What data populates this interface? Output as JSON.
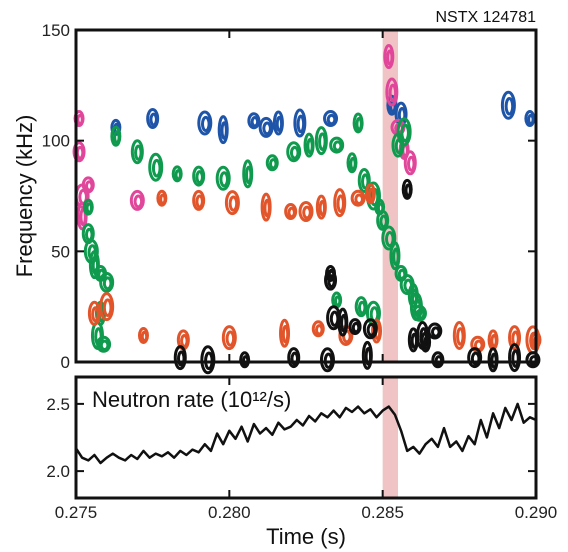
{
  "shot_label": "NSTX 124781",
  "colors": {
    "band": "#f0c4c4",
    "blue": "#1f55a8",
    "pink": "#e0479a",
    "green": "#0f9a4e",
    "orange": "#e2552b",
    "black": "#111111"
  },
  "chart_data": [
    {
      "type": "contour",
      "title": "",
      "xlabel": "",
      "ylabel": "Frequency (kHz)",
      "xlim": [
        0.275,
        0.29
      ],
      "ylim": [
        0,
        150
      ],
      "x_ticks": [
        0.275,
        0.28,
        0.285,
        0.29
      ],
      "y_ticks": [
        0,
        50,
        100,
        150
      ],
      "y_tick_labels": [
        "0",
        "50",
        "100",
        "150"
      ],
      "highlight_band": [
        0.285,
        0.2855
      ],
      "mode_groups": [
        {
          "color": "blue",
          "points": [
            [
              0.2763,
              106
            ],
            [
              0.2775,
              110
            ],
            [
              0.2792,
              108
            ],
            [
              0.2798,
              105
            ],
            [
              0.2808,
              109
            ],
            [
              0.2812,
              106
            ],
            [
              0.2816,
              108
            ],
            [
              0.2823,
              108
            ],
            [
              0.2833,
              110
            ],
            [
              0.2853,
              116
            ],
            [
              0.2856,
              112
            ],
            [
              0.2891,
              116
            ],
            [
              0.2898,
              110
            ]
          ]
        },
        {
          "color": "pink",
          "points": [
            [
              0.2751,
              110
            ],
            [
              0.2751,
              95
            ],
            [
              0.2752,
              75
            ],
            [
              0.2752,
              66
            ],
            [
              0.2754,
              80
            ],
            [
              0.277,
              73
            ],
            [
              0.2852,
              138
            ],
            [
              0.2853,
              122
            ],
            [
              0.2855,
              106
            ],
            [
              0.2857,
              96
            ],
            [
              0.2859,
              90
            ]
          ]
        },
        {
          "color": "green",
          "points": [
            [
              0.2754,
              70
            ],
            [
              0.2754,
              58
            ],
            [
              0.2755,
              50
            ],
            [
              0.2756,
              44
            ],
            [
              0.2758,
              40
            ],
            [
              0.276,
              36
            ],
            [
              0.2758,
              22
            ],
            [
              0.2757,
              12
            ],
            [
              0.2759,
              8
            ],
            [
              0.2763,
              102
            ],
            [
              0.277,
              95
            ],
            [
              0.2776,
              88
            ],
            [
              0.2783,
              85
            ],
            [
              0.279,
              84
            ],
            [
              0.2798,
              83
            ],
            [
              0.2806,
              85
            ],
            [
              0.2814,
              90
            ],
            [
              0.2821,
              95
            ],
            [
              0.2826,
              98
            ],
            [
              0.283,
              100
            ],
            [
              0.2835,
              98
            ],
            [
              0.284,
              90
            ],
            [
              0.2844,
              82
            ],
            [
              0.2847,
              75
            ],
            [
              0.2849,
              70
            ],
            [
              0.285,
              64
            ],
            [
              0.2852,
              56
            ],
            [
              0.2854,
              48
            ],
            [
              0.2856,
              40
            ],
            [
              0.2858,
              35
            ],
            [
              0.286,
              30
            ],
            [
              0.2861,
              25
            ],
            [
              0.2862,
              22
            ],
            [
              0.2842,
              108
            ],
            [
              0.2855,
              98
            ],
            [
              0.2857,
              104
            ],
            [
              0.2835,
              28
            ],
            [
              0.2843,
              25
            ],
            [
              0.2847,
              22
            ]
          ]
        },
        {
          "color": "orange",
          "points": [
            [
              0.2778,
              74
            ],
            [
              0.279,
              73
            ],
            [
              0.2801,
              72
            ],
            [
              0.2812,
              70
            ],
            [
              0.282,
              68
            ],
            [
              0.2825,
              68
            ],
            [
              0.283,
              70
            ],
            [
              0.2836,
              72
            ],
            [
              0.2842,
              74
            ],
            [
              0.2846,
              76
            ],
            [
              0.2756,
              22
            ],
            [
              0.276,
              25
            ],
            [
              0.2772,
              12
            ],
            [
              0.2785,
              10
            ],
            [
              0.28,
              11
            ],
            [
              0.2818,
              13
            ],
            [
              0.2829,
              15
            ],
            [
              0.2838,
              12
            ],
            [
              0.2848,
              14
            ],
            [
              0.2875,
              12
            ],
            [
              0.2881,
              8
            ],
            [
              0.2886,
              10
            ],
            [
              0.2893,
              11
            ],
            [
              0.2899,
              10
            ],
            [
              0.29,
              10
            ]
          ]
        },
        {
          "color": "black",
          "points": [
            [
              0.2833,
              40
            ],
            [
              0.2833,
              37
            ],
            [
              0.2834,
              20
            ],
            [
              0.2837,
              18
            ],
            [
              0.2841,
              16
            ],
            [
              0.2846,
              15
            ],
            [
              0.286,
              10
            ],
            [
              0.2863,
              12
            ],
            [
              0.2867,
              14
            ],
            [
              0.2864,
              9
            ],
            [
              0.2784,
              2
            ],
            [
              0.2793,
              1
            ],
            [
              0.2805,
              1
            ],
            [
              0.2821,
              2
            ],
            [
              0.2832,
              1
            ],
            [
              0.2845,
              3
            ],
            [
              0.2868,
              1
            ],
            [
              0.288,
              2
            ],
            [
              0.2886,
              1
            ],
            [
              0.2893,
              2
            ],
            [
              0.2899,
              1
            ],
            [
              0.2858,
              78
            ]
          ]
        }
      ]
    },
    {
      "type": "line",
      "title": "Neutron rate (10¹²/s)",
      "xlabel": "Time (s)",
      "ylabel": "",
      "xlim": [
        0.275,
        0.29
      ],
      "ylim": [
        1.8,
        2.7
      ],
      "x_ticks": [
        0.275,
        0.28,
        0.285,
        0.29
      ],
      "x_tick_labels": [
        "0.275",
        "0.280",
        "0.285",
        "0.290"
      ],
      "y_ticks": [
        2.0,
        2.5
      ],
      "y_tick_labels": [
        "2.0",
        "2.5"
      ],
      "highlight_band": [
        0.285,
        0.2855
      ],
      "series": [
        {
          "x": [
            0.275,
            0.2752,
            0.2754,
            0.2756,
            0.2758,
            0.276,
            0.2762,
            0.2764,
            0.2766,
            0.2768,
            0.277,
            0.2772,
            0.2774,
            0.2776,
            0.2778,
            0.278,
            0.2782,
            0.2784,
            0.2786,
            0.2788,
            0.279,
            0.2792,
            0.2794,
            0.2796,
            0.2798,
            0.28,
            0.2802,
            0.2804,
            0.2806,
            0.2808,
            0.281,
            0.2812,
            0.2814,
            0.2816,
            0.2818,
            0.282,
            0.2822,
            0.2824,
            0.2826,
            0.2828,
            0.283,
            0.2832,
            0.2834,
            0.2836,
            0.2838,
            0.284,
            0.2842,
            0.2844,
            0.2846,
            0.2848,
            0.285,
            0.2852,
            0.2854,
            0.2856,
            0.2858,
            0.286,
            0.2862,
            0.2864,
            0.2866,
            0.2868,
            0.287,
            0.2872,
            0.2874,
            0.2876,
            0.2878,
            0.288,
            0.2882,
            0.2884,
            0.2886,
            0.2888,
            0.289,
            0.2892,
            0.2894,
            0.2896,
            0.2898,
            0.29
          ],
          "y": [
            2.17,
            2.1,
            2.08,
            2.12,
            2.06,
            2.1,
            2.13,
            2.1,
            2.08,
            2.12,
            2.09,
            2.15,
            2.1,
            2.13,
            2.11,
            2.14,
            2.1,
            2.15,
            2.12,
            2.16,
            2.14,
            2.2,
            2.15,
            2.28,
            2.2,
            2.3,
            2.24,
            2.33,
            2.22,
            2.35,
            2.28,
            2.32,
            2.27,
            2.36,
            2.31,
            2.33,
            2.38,
            2.34,
            2.41,
            2.37,
            2.43,
            2.4,
            2.45,
            2.4,
            2.47,
            2.44,
            2.48,
            2.43,
            2.46,
            2.4,
            2.45,
            2.48,
            2.42,
            2.3,
            2.15,
            2.18,
            2.13,
            2.2,
            2.24,
            2.18,
            2.32,
            2.18,
            2.22,
            2.15,
            2.26,
            2.2,
            2.38,
            2.25,
            2.43,
            2.32,
            2.47,
            2.38,
            2.5,
            2.36,
            2.4,
            2.38
          ]
        }
      ]
    }
  ]
}
